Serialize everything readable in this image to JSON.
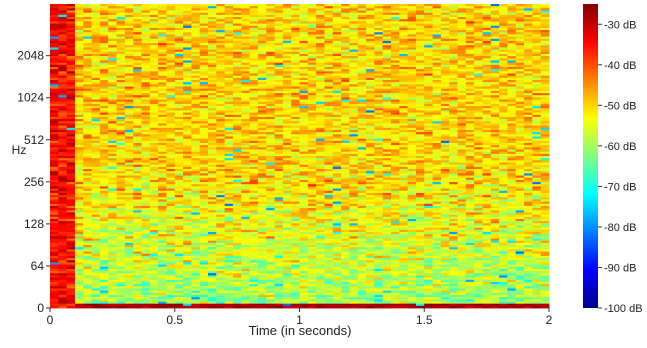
{
  "chart_data": {
    "type": "heatmap",
    "title": "",
    "xlabel": "Time (in seconds)",
    "ylabel": "Hz",
    "x_ticks": [
      {
        "value": 0,
        "label": "0"
      },
      {
        "value": 0.5,
        "label": "0.5"
      },
      {
        "value": 1,
        "label": "1"
      },
      {
        "value": 1.5,
        "label": "1.5"
      },
      {
        "value": 2,
        "label": "2"
      }
    ],
    "y_ticks": [
      "0",
      "64",
      "128",
      "256",
      "512",
      "1024",
      "2048"
    ],
    "y_scale": "log2 (0 at bottom)",
    "xlim": [
      0,
      2
    ],
    "colorbar": {
      "colormap": "jet",
      "range_db": [
        -100,
        -25
      ],
      "ticks": [
        "-30 dB",
        "-40 dB",
        "-50 dB",
        "-60 dB",
        "-70 dB",
        "-80 dB",
        "-90 dB",
        "-100 dB"
      ],
      "tick_values": [
        -30,
        -40,
        -50,
        -60,
        -70,
        -80,
        -90,
        -100
      ]
    },
    "features": {
      "dominant_level_db": -50,
      "first_frame_level_db": -35,
      "lowest_bin_level_db": -28,
      "low_freq_quiet_level_db": -65
    }
  }
}
